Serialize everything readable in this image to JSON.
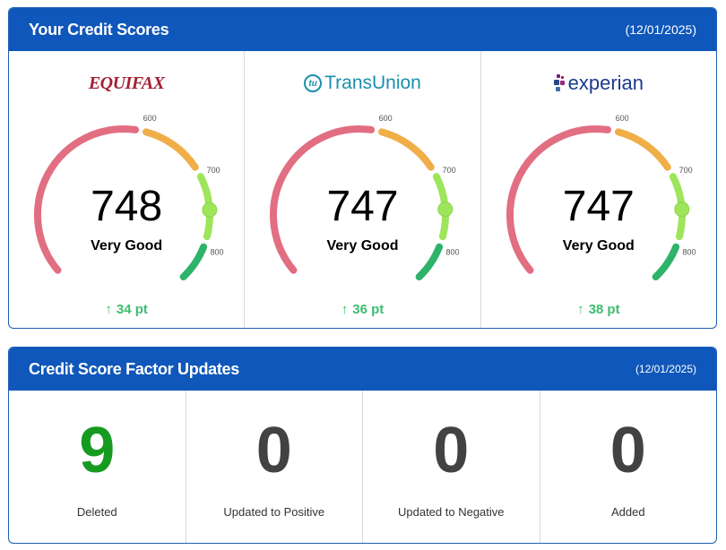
{
  "scores_card": {
    "title": "Your Credit Scores",
    "date": "(12/01/2025)",
    "bureaus": [
      {
        "name": "EQUIFAX",
        "score": "748",
        "score_value": 748,
        "rating": "Very Good",
        "change": "34 pt"
      },
      {
        "name": "TransUnion",
        "mark": "tu",
        "score": "747",
        "score_value": 747,
        "rating": "Very Good",
        "change": "36 pt"
      },
      {
        "name": "experian",
        "score": "747",
        "score_value": 747,
        "rating": "Very Good",
        "change": "38 pt"
      }
    ],
    "gauge": {
      "min": 300,
      "max": 850,
      "ticks": [
        "600",
        "700",
        "800"
      ],
      "colors": {
        "poor": "#e26e82",
        "fair": "#f0ae49",
        "good": "#9ee55c",
        "excellent": "#2db36a",
        "marker": "#9ee55c"
      }
    }
  },
  "factors_card": {
    "title": "Credit Score Factor Updates",
    "date": "(12/01/2025)",
    "items": [
      {
        "count": "9",
        "label": "Deleted"
      },
      {
        "count": "0",
        "label": "Updated to Positive"
      },
      {
        "count": "0",
        "label": "Updated to Negative"
      },
      {
        "count": "0",
        "label": "Added"
      }
    ]
  },
  "icons": {
    "arrow": "arrow-up-icon"
  }
}
